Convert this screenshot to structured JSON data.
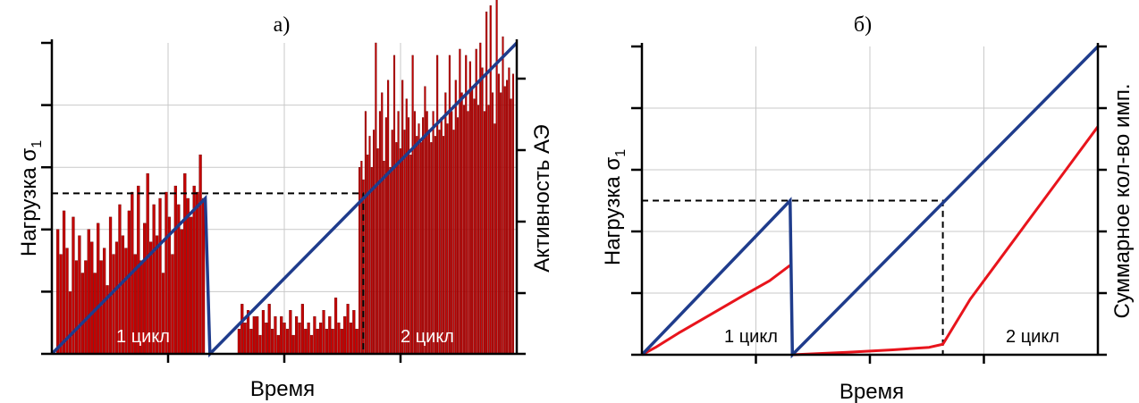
{
  "colors": {
    "load_line": "#1f3c8c",
    "bars": "#c40000",
    "bar_edge": "#6a0000",
    "cumulative_line": "#e8141c",
    "grid": "#c9c9c9",
    "axis": "#000000"
  },
  "chart_data": [
    {
      "panel": "a)",
      "type": "bar",
      "xlabel": "Время",
      "ylabel": "Нагрузка σ",
      "ylabel_sub": "1",
      "y2label": "Активность АЭ",
      "annotations": [
        "1 цикл",
        "2 цикл"
      ],
      "grid": true,
      "xlim": [
        0,
        1
      ],
      "ylim": [
        0,
        5
      ],
      "y2lim": [
        0,
        5
      ],
      "load_series": {
        "x": [
          0,
          0.33,
          0.34,
          1.0
        ],
        "y": [
          0,
          2.5,
          0,
          5
        ]
      },
      "threshold": {
        "y": 2.58,
        "x_from": 0,
        "x_to": 0.67,
        "drop_x": 0.67
      },
      "bars_segment_1": {
        "x_start": 0.01,
        "x_end": 0.33,
        "values": [
          2.0,
          1.6,
          2.3,
          1.7,
          1.0,
          2.2,
          1.5,
          1.9,
          1.3,
          1.5,
          2.0,
          1.8,
          1.3,
          2.1,
          1.5,
          1.7,
          1.1,
          2.2,
          1.6,
          1.8,
          2.4,
          1.9,
          1.7,
          2.3,
          2.6,
          1.6,
          2.7,
          1.5,
          2.1,
          2.9,
          1.8,
          2.4,
          1.9,
          2.5,
          1.3,
          2.6,
          2.2,
          1.6,
          2.7,
          2.4,
          2.0,
          2.9,
          2.5,
          2.2,
          2.7,
          2.6,
          3.2,
          2.5
        ]
      },
      "bars_segment_2": {
        "x_start": 0.4,
        "x_end": 0.66,
        "values": [
          0.4,
          0.8,
          0.5,
          0.7,
          0.4,
          0.6,
          0.6,
          0.3,
          0.7,
          0.5,
          0.8,
          0.4,
          0.6,
          0.3,
          0.6,
          0.5,
          0.4,
          0.7,
          0.3,
          0.6,
          0.5,
          0.8,
          0.4,
          0.5,
          0.3,
          0.6,
          0.4,
          0.5,
          0.7,
          0.4,
          0.6,
          0.4,
          0.9,
          0.5,
          0.4,
          0.6,
          0.8,
          0.5,
          0.7,
          0.4
        ]
      },
      "bars_segment_3": {
        "x_start": 0.66,
        "x_end": 0.995,
        "values": [
          3.0,
          3.1,
          2.8,
          3.9,
          3.2,
          3.5,
          3.0,
          3.6,
          5.0,
          3.3,
          3.9,
          4.2,
          3.1,
          3.8,
          4.4,
          3.0,
          3.6,
          4.8,
          3.4,
          3.9,
          3.3,
          4.4,
          3.6,
          4.1,
          3.8,
          3.2,
          4.8,
          3.9,
          3.5,
          3.7,
          3.4,
          3.8,
          4.3,
          3.9,
          3.6,
          3.4,
          3.9,
          3.5,
          4.8,
          3.6,
          3.8,
          3.5,
          4.2,
          3.7,
          4.8,
          3.9,
          3.6,
          4.4,
          3.8,
          4.9,
          4.2,
          4.0,
          4.8,
          3.9,
          4.7,
          4.3,
          4.1,
          4.9,
          4.0,
          5.0,
          4.6,
          3.9,
          5.5,
          4.0,
          5.6,
          4.2,
          3.7,
          6.4,
          4.5,
          4.2,
          5.1,
          4.3,
          4.4,
          4.6,
          4.1,
          4.5
        ]
      }
    },
    {
      "panel": "б)",
      "type": "line",
      "xlabel": "Время",
      "ylabel": "Нагрузка σ",
      "ylabel_sub": "1",
      "y2label": "Суммарное кол-во имп.",
      "annotations": [
        "1 цикл",
        "2 цикл"
      ],
      "grid": true,
      "xlim": [
        0,
        1
      ],
      "ylim": [
        0,
        5
      ],
      "load_series": {
        "x": [
          0,
          0.325,
          0.33,
          1.0
        ],
        "y": [
          0,
          2.5,
          0,
          5
        ]
      },
      "threshold": {
        "y": 2.5,
        "x_from": 0,
        "x_to": 0.66,
        "drop_x": 0.66
      },
      "cumulative_series": [
        {
          "x": [
            0,
            0.03,
            0.08,
            0.15,
            0.22,
            0.28,
            0.325
          ],
          "y": [
            0,
            0.12,
            0.35,
            0.65,
            0.95,
            1.2,
            1.45
          ]
        },
        {
          "x": [
            0.33,
            0.45,
            0.55,
            0.63,
            0.66,
            0.72,
            0.8,
            0.88,
            0.94,
            1.0
          ],
          "y": [
            0,
            0.04,
            0.08,
            0.12,
            0.17,
            0.9,
            1.7,
            2.5,
            3.1,
            3.7
          ]
        }
      ]
    }
  ]
}
